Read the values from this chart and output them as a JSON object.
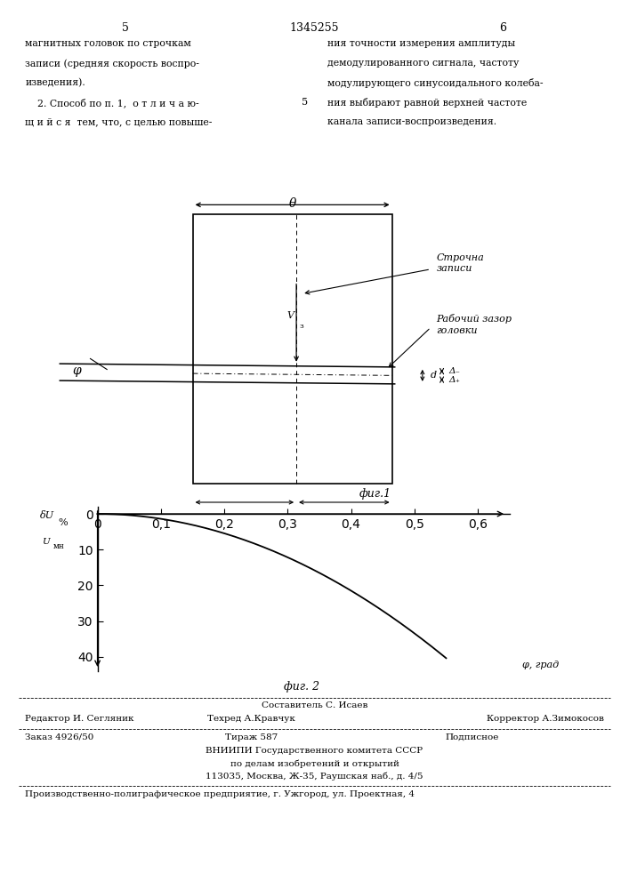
{
  "page_num_left": "5",
  "page_num_center": "1345255",
  "page_num_right": "6",
  "text_left": "магнитных головок по строчкам\nзаписи (средняя скорость воспро-\nизведения).\n    2. Способ по п. 1,  о т л и ч а ю-\nщ и й с я  тем, что, с целью повыше-",
  "text_right": "ния точности измерения амплитуды\nдемодулированного сигнала, частоту\nмодулирующего синусоидального колеба-\nния выбирают равной верхней частоте\nканала записи-воспроизведения.",
  "fig1_caption": "фиг.1",
  "fig2_caption": "фиг. 2",
  "plot2_ylabel_top": "δU",
  "plot2_ylabel_bot": "Uмн",
  "plot2_ylabel2": "%",
  "plot2_xlabel": "φ, град",
  "plot2_xtick_labels": [
    "0",
    "0,1",
    "0,2",
    "0,3",
    "0,4",
    "0,5",
    "0,6"
  ],
  "plot2_xtick_vals": [
    0,
    0.1,
    0.2,
    0.3,
    0.4,
    0.5,
    0.6
  ],
  "plot2_ytick_labels": [
    "0",
    "10",
    "20",
    "30",
    "40"
  ],
  "plot2_ytick_vals": [
    0,
    -10,
    -20,
    -30,
    -40
  ],
  "plot2_xlim": [
    0,
    0.65
  ],
  "plot2_ylim": [
    -44,
    2
  ],
  "footer_line1": "Составитель С. Исаев",
  "footer_line2_left": "Редактор И. Сегляник",
  "footer_line2_mid": "Техред А.Кравчук",
  "footer_line2_right": "Корректор А.Зимокосов",
  "footer_line3_left": "Заказ 4926/50",
  "footer_line3_mid": "Тираж 587",
  "footer_line3_right": "Подписное",
  "footer_line4": "ВНИИПИ Государственного комитета СССР",
  "footer_line5": "по делам изобретений и открытий",
  "footer_line6": "113035, Москва, Ж-35, Раушская наб., д. 4/5",
  "footer_line7": "Производственно-полиграфическое предприятие, г. Ужгород, ул. Проектная, 4",
  "bg_color": "#ffffff",
  "curve_color": "#000000",
  "diagram_label_strochnaya": "Строчна\nзаписи",
  "diagram_label_rabochiy": "Рабочий зазор\nголовки",
  "diagram_phi": "φ",
  "diagram_theta": "θ",
  "num_between": "5"
}
